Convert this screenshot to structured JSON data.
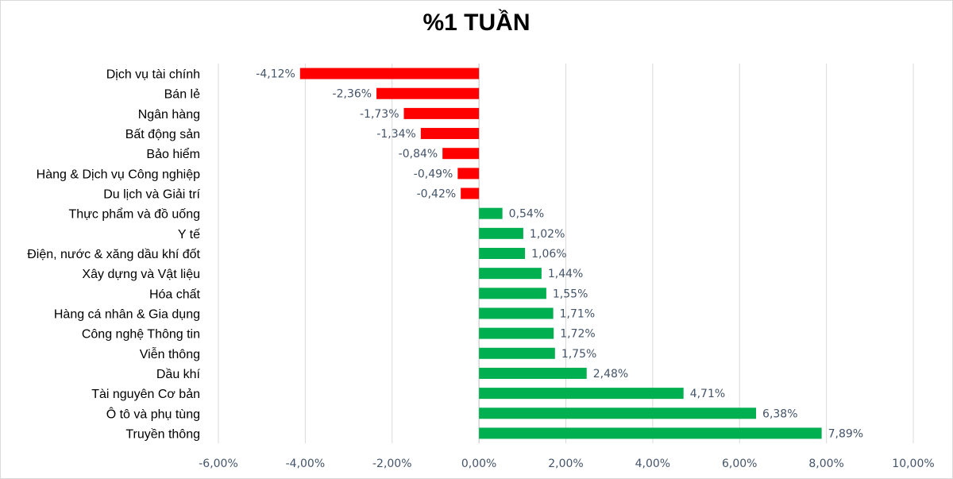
{
  "chart_data": {
    "type": "bar",
    "orientation": "horizontal",
    "title": "%1 TUẦN",
    "categories": [
      "Dịch vụ tài chính",
      "Bán lẻ",
      "Ngân hàng",
      "Bất động sản",
      "Bảo hiểm",
      "Hàng & Dịch vụ Công nghiệp",
      "Du lịch và Giải trí",
      "Thực phẩm và đồ uống",
      "Y tế",
      "Điện, nước & xăng dầu khí đốt",
      "Xây dựng và Vật liệu",
      "Hóa chất",
      "Hàng cá nhân & Gia dụng",
      "Công nghệ Thông tin",
      "Viễn thông",
      "Dầu khí",
      "Tài nguyên Cơ bản",
      "Ô tô và phụ tùng",
      "Truyền thông"
    ],
    "values": [
      -4.12,
      -2.36,
      -1.73,
      -1.34,
      -0.84,
      -0.49,
      -0.42,
      0.54,
      1.02,
      1.06,
      1.44,
      1.55,
      1.71,
      1.72,
      1.75,
      2.48,
      4.71,
      6.38,
      7.89
    ],
    "value_labels": [
      "-4,12%",
      "-2,36%",
      "-1,73%",
      "-1,34%",
      "-0,84%",
      "-0,49%",
      "-0,42%",
      "0,54%",
      "1,02%",
      "1,06%",
      "1,44%",
      "1,55%",
      "1,71%",
      "1,72%",
      "1,75%",
      "2,48%",
      "4,71%",
      "6,38%",
      "7,89%"
    ],
    "xlim": [
      -6,
      10
    ],
    "xticks": [
      -6,
      -4,
      -2,
      0,
      2,
      4,
      6,
      8,
      10
    ],
    "xtick_labels": [
      "-6,00%",
      "-4,00%",
      "-2,00%",
      "0,00%",
      "2,00%",
      "4,00%",
      "6,00%",
      "8,00%",
      "10,00%"
    ],
    "grid": true,
    "legend": "none",
    "colors": {
      "negative": "#ff0000",
      "positive": "#00b050",
      "grid": "#d9d9d9"
    }
  }
}
